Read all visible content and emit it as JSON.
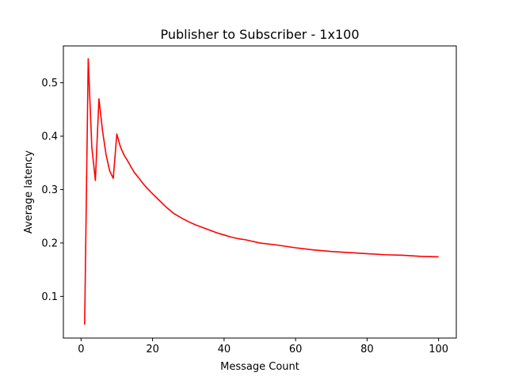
{
  "chart_data": {
    "type": "line",
    "title": "Publisher to Subscriber - 1x100",
    "xlabel": "Message Count",
    "ylabel": "Average latency",
    "xlim": [
      -4.95,
      104.95
    ],
    "ylim": [
      0.022,
      0.569
    ],
    "xticks": [
      0,
      20,
      40,
      60,
      80,
      100
    ],
    "yticks": [
      0.1,
      0.2,
      0.3,
      0.4,
      0.5
    ],
    "xtick_labels": [
      "0",
      "20",
      "40",
      "60",
      "80",
      "100"
    ],
    "ytick_labels": [
      "0.1",
      "0.2",
      "0.3",
      "0.4",
      "0.5"
    ],
    "grid": false,
    "series": [
      {
        "color": "#ff0000",
        "x": [
          1,
          2,
          3,
          4,
          5,
          6,
          7,
          8,
          9,
          10,
          11,
          12,
          13,
          14,
          15,
          16,
          17,
          18,
          19,
          20,
          22,
          24,
          26,
          28,
          30,
          32,
          34,
          36,
          38,
          40,
          42,
          44,
          46,
          48,
          50,
          55,
          60,
          65,
          70,
          75,
          80,
          85,
          90,
          95,
          100
        ],
        "y": [
          0.047,
          0.545,
          0.38,
          0.317,
          0.47,
          0.41,
          0.365,
          0.335,
          0.321,
          0.404,
          0.38,
          0.365,
          0.354,
          0.342,
          0.331,
          0.323,
          0.314,
          0.306,
          0.299,
          0.292,
          0.279,
          0.266,
          0.255,
          0.247,
          0.24,
          0.234,
          0.229,
          0.224,
          0.219,
          0.215,
          0.211,
          0.208,
          0.206,
          0.203,
          0.2,
          0.196,
          0.191,
          0.187,
          0.184,
          0.182,
          0.18,
          0.178,
          0.177,
          0.175,
          0.174
        ]
      }
    ]
  }
}
